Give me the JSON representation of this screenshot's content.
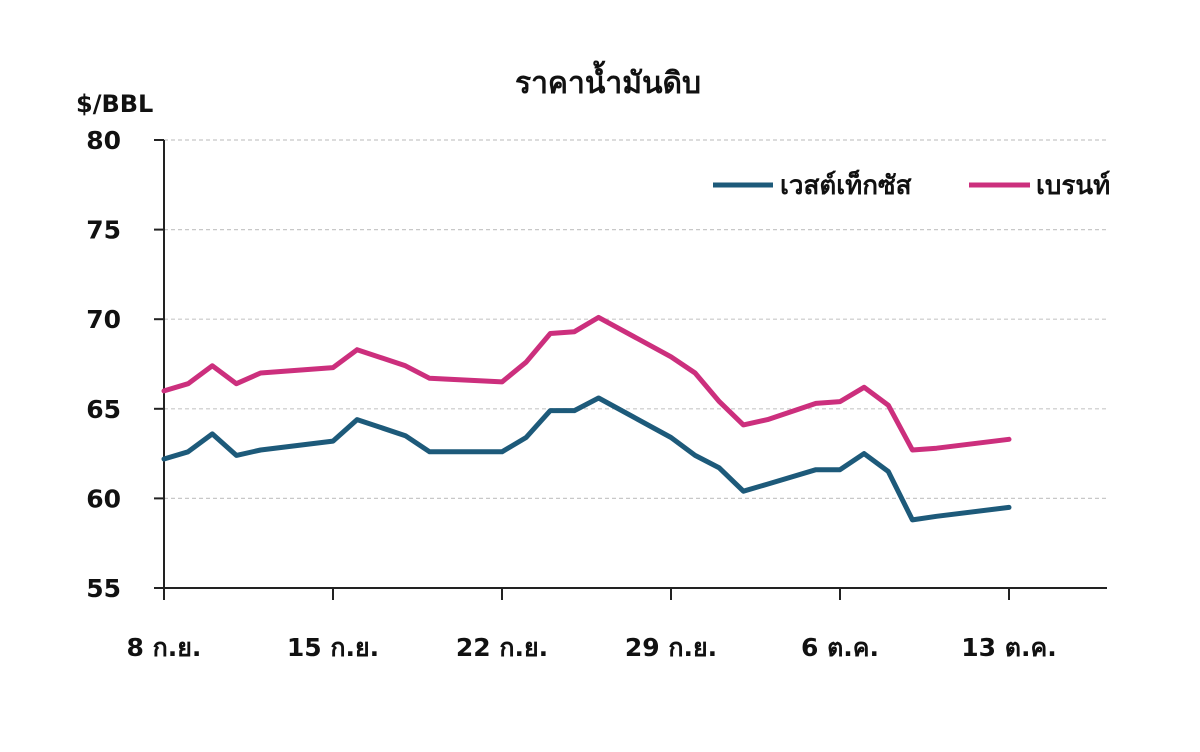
{
  "colors": {
    "west_texas": "#1d5a7a",
    "brent": "#cc2f7d"
  },
  "chart_data": {
    "type": "line",
    "title": "ราคาน้ำมันดิบ",
    "ylabel": "$/BBL",
    "xlabel": "",
    "ylim": [
      55,
      80
    ],
    "yticks": [
      55,
      60,
      65,
      70,
      75,
      80
    ],
    "xlim": [
      0,
      35
    ],
    "x_ticks": [
      {
        "x": 0,
        "label": "8 ก.ย."
      },
      {
        "x": 7,
        "label": "15 ก.ย."
      },
      {
        "x": 14,
        "label": "22 ก.ย."
      },
      {
        "x": 21,
        "label": "29 ก.ย."
      },
      {
        "x": 28,
        "label": "6 ต.ค."
      },
      {
        "x": 35,
        "label": "13 ต.ค."
      }
    ],
    "grid": true,
    "legend_position": "top-right",
    "series": [
      {
        "name": "เวสต์เท็กซัส",
        "color": "#1d5a7a",
        "x": [
          0,
          1,
          2,
          3,
          4,
          7,
          8,
          10,
          11,
          14,
          15,
          16,
          17,
          18,
          21,
          22,
          23,
          24,
          25,
          27,
          28,
          29,
          30,
          31,
          32,
          35
        ],
        "y": [
          62.2,
          62.6,
          63.6,
          62.4,
          62.7,
          63.2,
          64.4,
          63.5,
          62.6,
          62.6,
          63.4,
          64.9,
          64.9,
          65.6,
          63.4,
          62.4,
          61.7,
          60.4,
          60.8,
          61.6,
          61.6,
          62.5,
          61.5,
          58.8,
          59.0,
          59.5
        ]
      },
      {
        "name": "เบรนท์",
        "color": "#cc2f7d",
        "x": [
          0,
          1,
          2,
          3,
          4,
          7,
          8,
          10,
          11,
          14,
          15,
          16,
          17,
          18,
          21,
          22,
          23,
          24,
          25,
          27,
          28,
          29,
          30,
          31,
          32,
          35
        ],
        "y": [
          66.0,
          66.4,
          67.4,
          66.4,
          67.0,
          67.3,
          68.3,
          67.4,
          66.7,
          66.5,
          67.6,
          69.2,
          69.3,
          70.1,
          67.9,
          67.0,
          65.4,
          64.1,
          64.4,
          65.3,
          65.4,
          66.2,
          65.2,
          62.7,
          62.8,
          63.3
        ]
      }
    ]
  }
}
